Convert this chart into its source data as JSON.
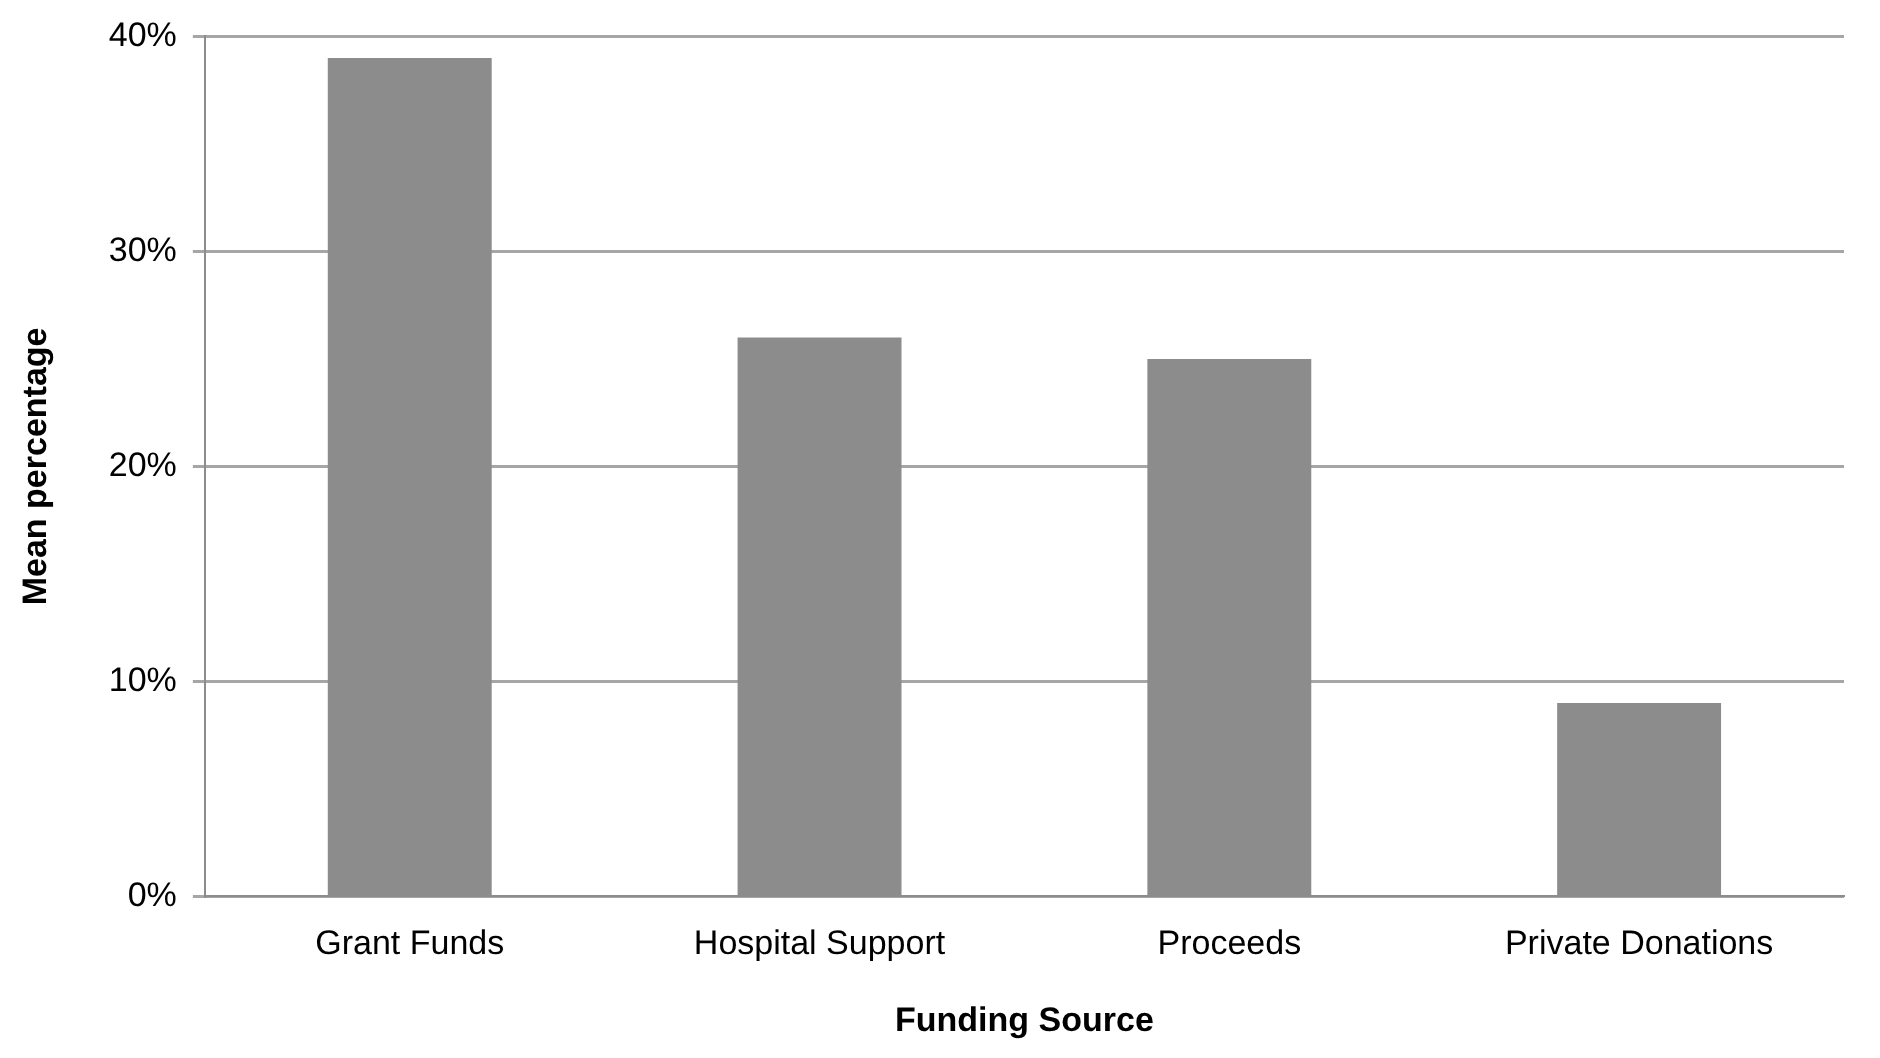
{
  "chart_data": {
    "type": "bar",
    "xlabel": "Funding Source",
    "ylabel": "Mean percentage",
    "categories": [
      "Grant Funds",
      "Hospital Support",
      "Proceeds",
      "Private Donations"
    ],
    "values": [
      39,
      26,
      25,
      9
    ],
    "color": "#8c8c8c",
    "ylim": [
      0,
      40
    ],
    "yticks": [
      {
        "value": 0,
        "label": "0%"
      },
      {
        "value": 10,
        "label": "10%"
      },
      {
        "value": 20,
        "label": "20%"
      },
      {
        "value": 30,
        "label": "30%"
      },
      {
        "value": 40,
        "label": "40%"
      }
    ],
    "grid": "y",
    "legend": false
  }
}
